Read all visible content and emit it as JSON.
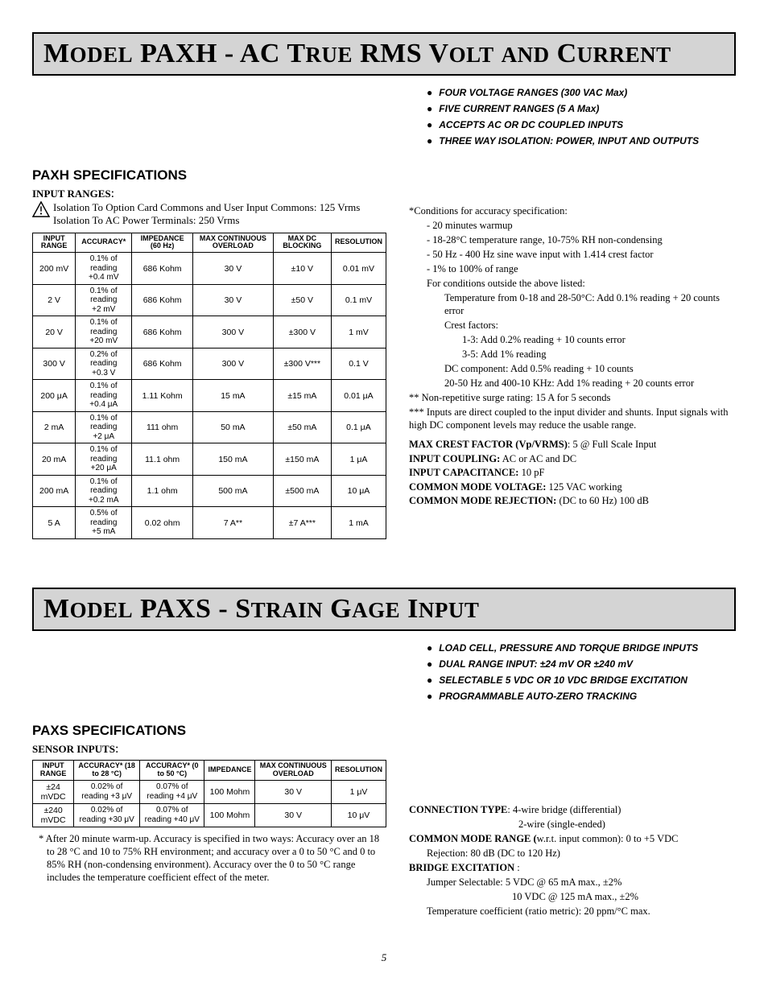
{
  "paxh": {
    "title_parts": [
      "M",
      "ODEL",
      " PAXH - AC T",
      "RUE",
      " RMS V",
      "OLT",
      " ",
      "AND",
      " C",
      "URRENT"
    ],
    "bullets": [
      "FOUR VOLTAGE RANGES (300 VAC Max)",
      "FIVE CURRENT RANGES (5 A Max)",
      "ACCEPTS AC OR DC COUPLED INPUTS",
      "THREE WAY ISOLATION: POWER, INPUT AND OUTPUTS"
    ],
    "spec_head": "PAXH SPECIFICATIONS",
    "input_ranges_label": "INPUT RANGES",
    "iso1": "Isolation To Option Card Commons and User Input Commons: 125 Vrms",
    "iso2": "Isolation To AC Power Terminals: 250 Vrms",
    "table_headers": [
      "INPUT RANGE",
      "ACCURACY*",
      "IMPEDANCE (60 Hz)",
      "MAX CONTINUOUS OVERLOAD",
      "MAX DC BLOCKING",
      "RESOLUTION"
    ],
    "rows": [
      {
        "r": "200 mV",
        "a": "0.1% of reading +0.4 mV",
        "imp": "686 Kohm",
        "ov": "30 V",
        "dc": "±10 V",
        "res": "0.01 mV"
      },
      {
        "r": "2 V",
        "a": "0.1% of reading +2 mV",
        "imp": "686 Kohm",
        "ov": "30 V",
        "dc": "±50 V",
        "res": "0.1 mV"
      },
      {
        "r": "20 V",
        "a": "0.1% of reading +20 mV",
        "imp": "686 Kohm",
        "ov": "300 V",
        "dc": "±300 V",
        "res": "1 mV"
      },
      {
        "r": "300 V",
        "a": "0.2% of reading +0.3 V",
        "imp": "686 Kohm",
        "ov": "300 V",
        "dc": "±300 V***",
        "res": "0.1 V"
      },
      {
        "r": "200 μA",
        "a": "0.1% of reading +0.4 μA",
        "imp": "1.11 Kohm",
        "ov": "15 mA",
        "dc": "±15 mA",
        "res": "0.01 μA"
      },
      {
        "r": "2 mA",
        "a": "0.1% of reading +2 μA",
        "imp": "111 ohm",
        "ov": "50 mA",
        "dc": "±50 mA",
        "res": "0.1 μA"
      },
      {
        "r": "20 mA",
        "a": "0.1% of reading +20 μA",
        "imp": "11.1 ohm",
        "ov": "150 mA",
        "dc": "±150 mA",
        "res": "1 μA"
      },
      {
        "r": "200 mA",
        "a": "0.1% of reading +0.2 mA",
        "imp": "1.1 ohm",
        "ov": "500 mA",
        "dc": "±500 mA",
        "res": "10 μA"
      },
      {
        "r": "5 A",
        "a": "0.5% of reading +5 mA",
        "imp": "0.02 ohm",
        "ov": "7 A**",
        "dc": "±7 A***",
        "res": "1 mA"
      }
    ],
    "cond_head": "*Conditions for accuracy specification:",
    "cond": [
      "- 20 minutes warmup",
      "- 18-28°C temperature range, 10-75% RH non-condensing",
      "- 50 Hz - 400 Hz sine wave input with 1.414 crest factor",
      "- 1% to 100% of range",
      "For conditions outside the above listed:"
    ],
    "cond_temp": "Temperature from 0-18 and 28-50°C: Add 0.1% reading + 20 counts error",
    "cond_cf_label": "Crest factors:",
    "cond_cf1": "1-3: Add 0.2% reading + 10 counts error",
    "cond_cf2": "3-5: Add 1% reading",
    "cond_dc": "DC component: Add 0.5% reading + 10 counts",
    "cond_hz": "20-50 Hz and 400-10 KHz: Add 1% reading + 20 counts error",
    "note2": "** Non-repetitive surge rating: 15 A for 5 seconds",
    "note3": "*** Inputs are direct coupled to the input divider and shunts. Input signals with high DC component levels may reduce the usable range.",
    "kv": [
      {
        "k": "MAX CREST FACTOR (Vp/VRMS)",
        "v": ": 5 @ Full Scale Input"
      },
      {
        "k": "INPUT COUPLING:",
        "v": " AC or AC and DC"
      },
      {
        "k": "INPUT CAPACITANCE:",
        "v": " 10 pF"
      },
      {
        "k": "COMMON MODE VOLTAGE:",
        "v": " 125 VAC working"
      },
      {
        "k": "COMMON MODE REJECTION:",
        "v": " (DC to 60 Hz) 100 dB"
      }
    ]
  },
  "paxs": {
    "title_parts": [
      "M",
      "ODEL",
      " PAXS - S",
      "TRAIN",
      " G",
      "AGE",
      " I",
      "NPUT"
    ],
    "bullets": [
      "LOAD CELL, PRESSURE AND TORQUE BRIDGE INPUTS",
      "DUAL RANGE INPUT: ±24 mV OR ±240 mV",
      "SELECTABLE 5 VDC OR 10 VDC BRIDGE EXCITATION",
      "PROGRAMMABLE AUTO-ZERO TRACKING"
    ],
    "spec_head": "PAXS SPECIFICATIONS",
    "sensor_inputs_label": "SENSOR INPUTS",
    "table_headers": [
      "INPUT RANGE",
      "ACCURACY* (18 to 28 °C)",
      "ACCURACY* (0 to 50 °C)",
      "IMPEDANCE",
      "MAX CONTINUOUS OVERLOAD",
      "RESOLUTION"
    ],
    "rows": [
      {
        "r": "±24 mVDC",
        "a1": "0.02% of reading +3 μV",
        "a2": "0.07% of reading +4 μV",
        "imp": "100 Mohm",
        "ov": "30 V",
        "res": "1 μV"
      },
      {
        "r": "±240 mVDC",
        "a1": "0.02% of reading +30 μV",
        "a2": "0.07% of reading +40 μV",
        "imp": "100 Mohm",
        "ov": "30 V",
        "res": "10 μV"
      }
    ],
    "footnote": "* After 20 minute warm-up. Accuracy is specified in two ways: Accuracy over an 18 to 28 °C and 10 to 75% RH environment; and accuracy over a 0 to 50 °C and 0 to 85% RH (non-condensing environment). Accuracy over the 0 to 50 °C range includes the temperature coefficient effect of the meter.",
    "conn_type_k": "CONNECTION TYPE",
    "conn_type_v1": ": 4-wire bridge (differential)",
    "conn_type_v2": "2-wire (single-ended)",
    "cmr_k": "COMMON MODE RANGE (",
    "cmr_v": "w.r.t. input common): 0 to +5 VDC",
    "cmr_rej": "Rejection: 80 dB (DC to 120 Hz)",
    "bridge_k": "BRIDGE EXCITATION",
    "bridge_v1": "Jumper Selectable: 5 VDC @ 65 mA max., ±2%",
    "bridge_v2": "10 VDC @ 125 mA max., ±2%",
    "bridge_tc": "Temperature coefficient (ratio metric): 20 ppm/°C max."
  },
  "page_number": "5"
}
